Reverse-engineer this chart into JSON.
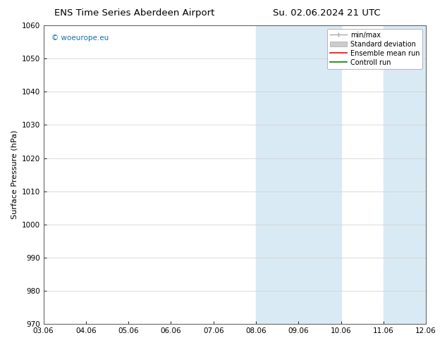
{
  "title_left": "ENS Time Series Aberdeen Airport",
  "title_right": "Su. 02.06.2024 21 UTC",
  "ylabel": "Surface Pressure (hPa)",
  "ylim": [
    970,
    1060
  ],
  "yticks": [
    970,
    980,
    990,
    1000,
    1010,
    1020,
    1030,
    1040,
    1050,
    1060
  ],
  "xlim_start": 0,
  "xlim_end": 9,
  "xtick_labels": [
    "03.06",
    "04.06",
    "05.06",
    "06.06",
    "07.06",
    "08.06",
    "09.06",
    "10.06",
    "11.06",
    "12.06"
  ],
  "xtick_positions": [
    0,
    1,
    2,
    3,
    4,
    5,
    6,
    7,
    8,
    9
  ],
  "shaded_blocks": [
    {
      "xstart": 5.0,
      "xend": 7.0
    },
    {
      "xstart": 8.0,
      "xend": 9.0
    }
  ],
  "shaded_color": "#daeaf5",
  "watermark_text": "© woeurope.eu",
  "watermark_color": "#1a6faf",
  "background_color": "#ffffff",
  "plot_bg_color": "#ffffff",
  "grid_color": "#cccccc",
  "title_fontsize": 9.5,
  "ylabel_fontsize": 8,
  "tick_fontsize": 7.5,
  "watermark_fontsize": 7.5,
  "legend_fontsize": 7,
  "legend_loc": "upper right",
  "minmax_color": "#aaaaaa",
  "stddev_color": "#cccccc",
  "stddev_edge_color": "#aaaaaa",
  "mean_color": "red",
  "control_color": "green"
}
